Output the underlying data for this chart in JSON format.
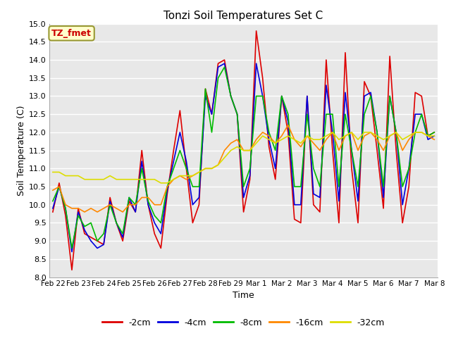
{
  "title": "Tonzi Soil Temperatures Set C",
  "xlabel": "Time",
  "ylabel": "Soil Temperature (C)",
  "ylim": [
    8.0,
    15.0
  ],
  "yticks": [
    8.0,
    8.5,
    9.0,
    9.5,
    10.0,
    10.5,
    11.0,
    11.5,
    12.0,
    12.5,
    13.0,
    13.5,
    14.0,
    14.5,
    15.0
  ],
  "xtick_labels": [
    "Feb 22",
    "Feb 23",
    "Feb 24",
    "Feb 25",
    "Feb 26",
    "Feb 27",
    "Feb 28",
    "Feb 29",
    "Mar 1",
    "Mar 2",
    "Mar 3",
    "Mar 4",
    "Mar 5",
    "Mar 6",
    "Mar 7",
    "Mar 8"
  ],
  "fig_bg_color": "#ffffff",
  "plot_bg_color": "#e8e8e8",
  "grid_color": "#ffffff",
  "label_box_color": "#ffffcc",
  "label_box_text": "TZ_fmet",
  "label_box_text_color": "#cc0000",
  "label_box_edge_color": "#999933",
  "series": [
    {
      "label": "-2cm",
      "color": "#dd0000",
      "data": [
        9.8,
        10.6,
        9.7,
        8.2,
        9.9,
        9.2,
        9.1,
        9.0,
        8.9,
        10.2,
        9.5,
        9.0,
        10.1,
        9.8,
        11.5,
        10.0,
        9.2,
        8.8,
        10.3,
        11.5,
        12.6,
        11.0,
        9.5,
        10.0,
        13.2,
        12.5,
        13.9,
        14.0,
        13.0,
        12.5,
        9.8,
        10.7,
        14.8,
        13.5,
        11.6,
        10.7,
        13.0,
        12.0,
        9.6,
        9.5,
        13.0,
        10.0,
        9.8,
        14.0,
        11.5,
        9.5,
        14.2,
        11.0,
        9.5,
        13.4,
        13.0,
        11.5,
        9.9,
        14.1,
        11.5,
        9.5,
        10.5,
        13.1,
        13.0,
        11.9,
        12.0
      ]
    },
    {
      "label": "-4cm",
      "color": "#0000dd",
      "data": [
        9.9,
        10.5,
        9.9,
        8.7,
        9.8,
        9.3,
        9.0,
        8.8,
        8.9,
        10.1,
        9.5,
        9.1,
        10.2,
        9.8,
        11.2,
        10.0,
        9.5,
        9.2,
        10.4,
        11.2,
        12.0,
        11.2,
        10.0,
        10.2,
        13.0,
        12.5,
        13.8,
        13.9,
        13.0,
        12.5,
        10.2,
        10.8,
        13.9,
        13.0,
        11.8,
        11.0,
        13.0,
        12.3,
        10.0,
        10.0,
        13.0,
        10.3,
        10.2,
        13.3,
        12.0,
        10.1,
        13.1,
        11.5,
        10.1,
        13.0,
        13.1,
        12.0,
        10.2,
        13.0,
        12.0,
        10.0,
        11.0,
        12.5,
        12.5,
        11.8,
        11.9
      ]
    },
    {
      "label": "-8cm",
      "color": "#00bb00",
      "data": [
        10.1,
        10.5,
        9.9,
        8.8,
        9.7,
        9.4,
        9.5,
        9.0,
        9.2,
        10.0,
        9.5,
        9.2,
        10.2,
        10.0,
        11.0,
        10.1,
        9.7,
        9.5,
        10.5,
        11.0,
        11.5,
        11.0,
        10.5,
        10.5,
        13.2,
        12.0,
        13.5,
        13.8,
        13.0,
        12.5,
        10.5,
        11.0,
        13.0,
        13.0,
        12.0,
        11.5,
        13.0,
        12.5,
        10.5,
        10.5,
        12.5,
        11.0,
        10.5,
        12.5,
        12.5,
        10.5,
        12.5,
        11.5,
        10.5,
        12.5,
        13.0,
        12.0,
        10.5,
        13.0,
        12.0,
        10.5,
        11.0,
        12.0,
        12.5,
        11.9,
        12.0
      ]
    },
    {
      "label": "-16cm",
      "color": "#ff8800",
      "data": [
        10.4,
        10.5,
        10.0,
        9.9,
        9.9,
        9.8,
        9.9,
        9.8,
        9.9,
        10.0,
        9.9,
        9.8,
        10.0,
        10.0,
        10.2,
        10.2,
        10.0,
        10.0,
        10.5,
        10.7,
        10.8,
        10.7,
        10.8,
        10.9,
        11.0,
        11.0,
        11.1,
        11.5,
        11.7,
        11.8,
        11.5,
        11.5,
        11.8,
        12.0,
        11.9,
        11.7,
        11.9,
        12.2,
        11.8,
        11.6,
        11.9,
        11.7,
        11.5,
        11.8,
        12.0,
        11.5,
        11.9,
        12.0,
        11.5,
        11.9,
        12.0,
        11.8,
        11.5,
        11.9,
        12.0,
        11.5,
        11.8,
        12.0,
        12.0,
        11.9,
        11.8
      ]
    },
    {
      "label": "-32cm",
      "color": "#dddd00",
      "data": [
        10.9,
        10.9,
        10.8,
        10.8,
        10.8,
        10.7,
        10.7,
        10.7,
        10.7,
        10.8,
        10.7,
        10.7,
        10.7,
        10.7,
        10.7,
        10.7,
        10.7,
        10.6,
        10.6,
        10.7,
        10.8,
        10.8,
        10.8,
        10.9,
        11.0,
        11.0,
        11.1,
        11.3,
        11.5,
        11.6,
        11.5,
        11.5,
        11.7,
        11.9,
        11.8,
        11.7,
        11.8,
        11.9,
        11.8,
        11.7,
        11.9,
        11.8,
        11.8,
        11.9,
        12.0,
        11.8,
        11.9,
        12.0,
        11.8,
        12.0,
        12.0,
        11.9,
        11.8,
        11.9,
        12.0,
        11.8,
        11.9,
        12.0,
        12.0,
        11.9,
        11.9
      ]
    }
  ],
  "n_points": 61,
  "xtick_positions": [
    0,
    4,
    8,
    12,
    16,
    20,
    24,
    28,
    32,
    36,
    40,
    44,
    48,
    52,
    56,
    60
  ]
}
